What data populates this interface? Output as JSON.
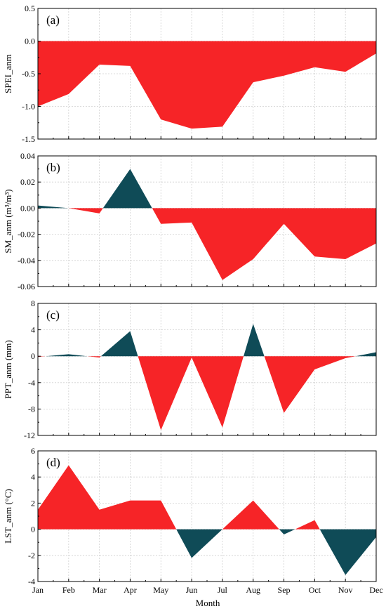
{
  "figure": {
    "xlabel": "Month"
  },
  "chart_data": [
    {
      "type": "area",
      "panel_tag": "(a)",
      "xlabel": "",
      "ylabel": "SPEI_anm",
      "categories": [
        "Jan",
        "Feb",
        "Mar",
        "Apr",
        "May",
        "Jun",
        "Jul",
        "Aug",
        "Sep",
        "Oct",
        "Nov",
        "Dec"
      ],
      "values": [
        -1.0,
        -0.81,
        -0.36,
        -0.38,
        -1.2,
        -1.34,
        -1.31,
        -0.63,
        -0.53,
        -0.4,
        -0.47,
        -0.19
      ],
      "ylim": [
        -1.5,
        0.5
      ],
      "yticks": [
        -1.5,
        -1.0,
        -0.5,
        0.0,
        0.5
      ],
      "ytick_labels": [
        "-1.5",
        "-1.0",
        "-0.5",
        "0.0",
        "0.5"
      ],
      "grid": true,
      "show_xtick_labels": false,
      "colors": {
        "positive": "#0f4b57",
        "negative": "#f62427"
      }
    },
    {
      "type": "area",
      "panel_tag": "(b)",
      "xlabel": "",
      "ylabel": "SM_anm (m³/m³)",
      "categories": [
        "Jan",
        "Feb",
        "Mar",
        "Apr",
        "May",
        "Jun",
        "Jul",
        "Aug",
        "Sep",
        "Oct",
        "Nov",
        "Dec"
      ],
      "values": [
        0.002,
        0.0,
        -0.004,
        0.03,
        -0.012,
        -0.011,
        -0.055,
        -0.039,
        -0.012,
        -0.037,
        -0.039,
        -0.027
      ],
      "ylim": [
        -0.06,
        0.04
      ],
      "yticks": [
        -0.06,
        -0.04,
        -0.02,
        0.0,
        0.02,
        0.04
      ],
      "ytick_labels": [
        "-0.06",
        "-0.04",
        "-0.02",
        "0.00",
        "0.02",
        "0.04"
      ],
      "grid": true,
      "show_xtick_labels": false,
      "colors": {
        "positive": "#0f4b57",
        "negative": "#f62427"
      }
    },
    {
      "type": "area",
      "panel_tag": "(c)",
      "xlabel": "",
      "ylabel": "PPT_anm (mm)",
      "categories": [
        "Jan",
        "Feb",
        "Mar",
        "Apr",
        "May",
        "Jun",
        "Jul",
        "Aug",
        "Sep",
        "Oct",
        "Nov",
        "Dec"
      ],
      "values": [
        -0.1,
        0.3,
        -0.2,
        3.8,
        -11.2,
        -0.2,
        -10.8,
        4.9,
        -8.6,
        -2.0,
        -0.3,
        0.6
      ],
      "ylim": [
        -12,
        8
      ],
      "yticks": [
        -12,
        -8,
        -4,
        0,
        4,
        8
      ],
      "ytick_labels": [
        "-12",
        "-8",
        "-4",
        "0",
        "4",
        "8"
      ],
      "grid": true,
      "show_xtick_labels": false,
      "colors": {
        "positive": "#0f4b57",
        "negative": "#f62427"
      }
    },
    {
      "type": "area",
      "panel_tag": "(d)",
      "xlabel": "Month",
      "ylabel": "LST_anm (°C)",
      "categories": [
        "Jan",
        "Feb",
        "Mar",
        "Apr",
        "May",
        "Jun",
        "Jul",
        "Aug",
        "Sep",
        "Oct",
        "Nov",
        "Dec"
      ],
      "values": [
        1.5,
        4.9,
        1.5,
        2.2,
        2.2,
        -2.2,
        0.0,
        2.2,
        -0.4,
        0.7,
        -3.5,
        -0.6
      ],
      "ylim": [
        -4,
        6
      ],
      "yticks": [
        -4,
        -2,
        0,
        2,
        4,
        6
      ],
      "ytick_labels": [
        "-4",
        "-2",
        "0",
        "2",
        "4",
        "6"
      ],
      "grid": true,
      "show_xtick_labels": true,
      "colors": {
        "positive": "#f62427",
        "negative": "#0f4b57"
      }
    }
  ]
}
